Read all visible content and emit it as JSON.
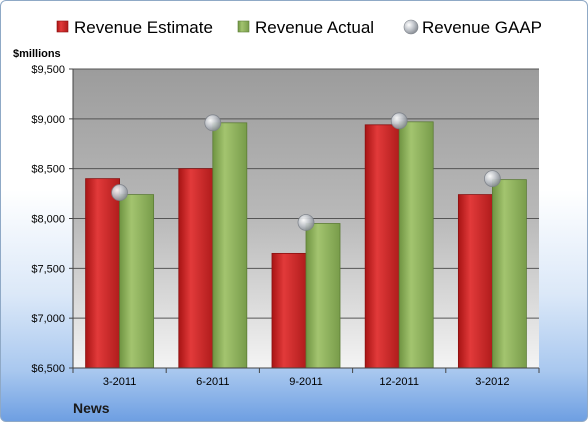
{
  "chart_data": {
    "type": "bar",
    "categories": [
      "3-2011",
      "6-2011",
      "9-2011",
      "12-2011",
      "3-2012"
    ],
    "series": [
      {
        "name": "Revenue Estimate",
        "type": "bar",
        "color": "#d42a2a",
        "values": [
          8400,
          8500,
          7650,
          8940,
          8240
        ]
      },
      {
        "name": "Revenue Actual",
        "type": "bar",
        "color": "#8fb15c",
        "values": [
          8240,
          8960,
          7950,
          8970,
          8390
        ]
      },
      {
        "name": "Revenue GAAP",
        "type": "scatter",
        "color": "#b7bcc4",
        "values": [
          8260,
          8960,
          7960,
          8980,
          8400
        ]
      }
    ],
    "ylabel": "$millions",
    "ylim": [
      6500,
      9500
    ],
    "yticks": [
      6500,
      7000,
      7500,
      8000,
      8500,
      9000,
      9500
    ],
    "ytick_labels": [
      "$6,500",
      "$7,000",
      "$7,500",
      "$8,000",
      "$8,500",
      "$9,000",
      "$9,500"
    ],
    "grid": true,
    "legend": "top"
  },
  "footer": "News"
}
